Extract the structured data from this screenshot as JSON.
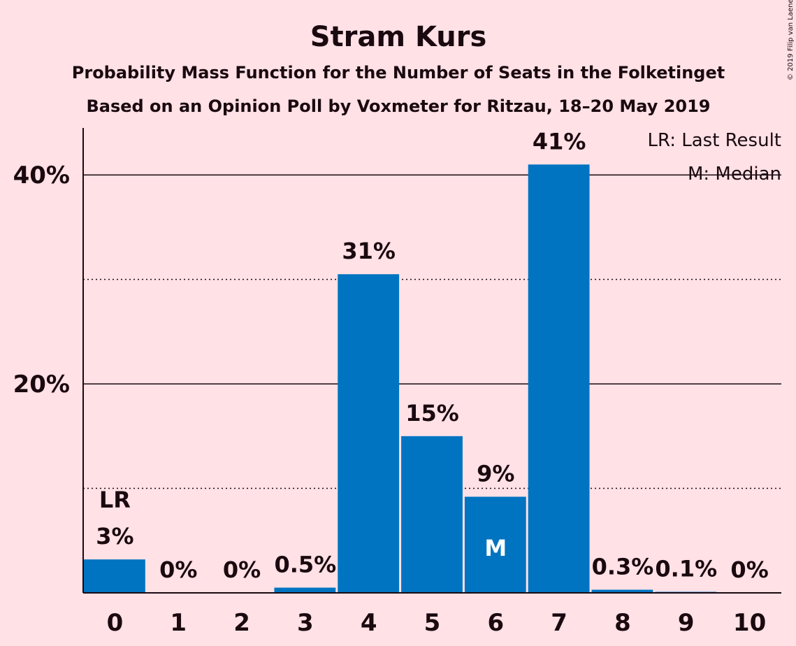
{
  "chart_data": {
    "type": "bar",
    "title": "Stram Kurs",
    "subtitle_1": "Probability Mass Function for the Number of Seats in the Folketinget",
    "subtitle_2": "Based on an Opinion Poll by Voxmeter for Ritzau, 18–20 May 2019",
    "copyright": "© 2019 Filip van Laenen",
    "categories": [
      "0",
      "1",
      "2",
      "3",
      "4",
      "5",
      "6",
      "7",
      "8",
      "9",
      "10"
    ],
    "values": [
      3.2,
      0,
      0,
      0.5,
      30.5,
      15,
      9.2,
      41,
      0.3,
      0.1,
      0
    ],
    "value_labels": [
      "3%",
      "0%",
      "0%",
      "0.5%",
      "31%",
      "15%",
      "9%",
      "41%",
      "0.3%",
      "0.1%",
      "0%"
    ],
    "ylim": [
      0,
      44.5
    ],
    "y_ticks": [
      {
        "value": 20,
        "label": "20%"
      },
      {
        "value": 40,
        "label": "40%"
      }
    ],
    "minor_grid": [
      10,
      30
    ],
    "bar_color": "#0074C1",
    "background": "#FFE1E6",
    "last_result": {
      "index": 0,
      "label": "LR"
    },
    "median": {
      "index": 6,
      "label": "M"
    },
    "legend": {
      "position": "top-right",
      "entries": [
        "LR: Last Result",
        "M: Median"
      ]
    }
  }
}
